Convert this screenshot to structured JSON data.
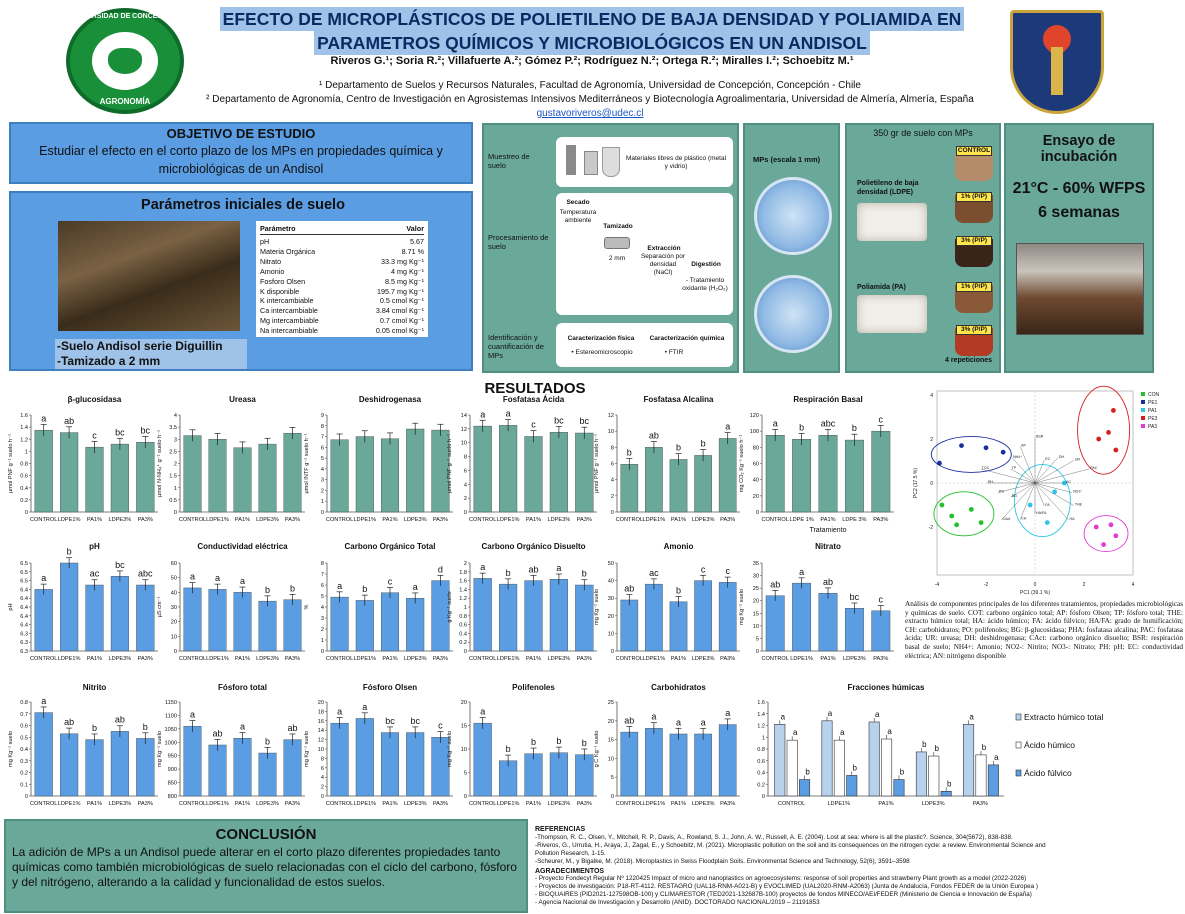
{
  "header": {
    "title_line1": "EFECTO DE MICROPLÁSTICOS DE POLIETILENO DE BAJA DENSIDAD  Y POLIAMIDA EN",
    "title_line2": "PARAMETROS QUÍMICOS Y MICROBIOLÓGICOS EN UN ANDISOL",
    "authors": "Riveros G.¹; Soria R.²; Villafuerte A.²; Gómez P.²; Rodríguez N.²; Ortega R.²; Miralles I.²; Schoebitz M.¹",
    "affiliation1": "¹ Departamento de Suelos y Recursos Naturales, Facultad de Agronomía, Universidad de Concepción, Concepción - Chile",
    "affiliation2": "² Departamento de Agronomía, Centro de Investigación en Agrosistemas Intensivos Mediterráneos y Biotecnología Agroalimentaria, Universidad de Almería, Almería, España",
    "email": "gustavoriveros@udec.cl",
    "logo_left_top": "UNIVERSIDAD DE CONCEPCIÓN",
    "logo_left_bottom": "AGRONOMÍA"
  },
  "objective": {
    "title": "OBJETIVO DE ESTUDIO",
    "text": "Estudiar el efecto en el corto plazo de los MPs en propiedades química y microbiológicas de un Andisol"
  },
  "params": {
    "title": "Parámetros iniciales de suelo",
    "col_param": "Parámetro",
    "col_value": "Valor",
    "rows": [
      {
        "p": "pH",
        "v": "5.67"
      },
      {
        "p": "Materia Orgánica",
        "v": "8.71 %"
      },
      {
        "p": "Nitrato",
        "v": "33.3  mg Kg⁻¹"
      },
      {
        "p": "Amonio",
        "v": "4  mg Kg⁻¹"
      },
      {
        "p": "Fosforo Olsen",
        "v": "8.5  mg Kg⁻¹"
      },
      {
        "p": "K disponible",
        "v": "195.7  mg Kg⁻¹"
      },
      {
        "p": "K intercambiable",
        "v": "0.5  cmol Kg⁻¹"
      },
      {
        "p": "Ca intercambiable",
        "v": "3.84  cmol Kg⁻¹"
      },
      {
        "p": "Mg intercambiable",
        "v": "0.7  cmol Kg⁻¹"
      },
      {
        "p": "Na intercambiable",
        "v": "0.05  cmol Kg⁻¹"
      }
    ],
    "note1": "-Suelo Andisol serie Diguillin",
    "note2": "-Tamizado a 2 mm"
  },
  "method": {
    "muestreo": "Muestreo de suelo",
    "mat_libres": "Materiales libres de plástico (metal y vidrio)",
    "procesamiento": "Procesamiento de suelo",
    "secado": "Secado",
    "temp": "Temperatura ambiente",
    "tamizado": "Tamizado",
    "mm": "2 mm",
    "extraccion": "Extracción",
    "separacion": "Separación por densidad (NaCl)",
    "digestion": "Digestión",
    "tratamiento": "- Tratamiento oxidante (H₂O₂)",
    "identificacion": "Identificación y cuantificación de MPs",
    "fisica": "Caracterización física",
    "quimica": "Caracterización química",
    "estereo": "•  Estereomicroscopio",
    "ftir": "•  FTIR"
  },
  "mps": {
    "label": "MPs (escala 1 mm)"
  },
  "mpsoil": {
    "title": "350 gr de suelo con MPs",
    "ldpe": "Polietileno de baja densidad (LDPE)",
    "pa": "Poliamida (PA)",
    "tags": [
      "CONTROL",
      "1% (P/P)",
      "3% (P/P)",
      "1% (P/P)",
      "3% (P/P)"
    ],
    "reps": "4 repeticiones"
  },
  "incubation": {
    "title": "Ensayo de incubación",
    "temp": "21°C - 60% WFPS",
    "time": "6 semanas"
  },
  "results_title": "RESULTADOS",
  "chart_data": [
    {
      "type": "bar",
      "title": "β-glucosidasa",
      "ylabel": "µmol PNF g⁻¹ suelo h⁻¹",
      "categories": [
        "CONTROL",
        "LDPE1%",
        "PA1%",
        "LDPE3%",
        "PA3%"
      ],
      "values": [
        1.35,
        1.31,
        1.07,
        1.12,
        1.15
      ],
      "letters": [
        "a",
        "ab",
        "c",
        "bc",
        "bc"
      ],
      "ylim": [
        0,
        1.6
      ],
      "ticks": [
        0,
        0.2,
        0.4,
        0.6,
        0.8,
        1,
        1.2,
        1.4,
        1.6
      ],
      "color": "#6aa89a"
    },
    {
      "type": "bar",
      "title": "Ureasa",
      "ylabel": "µmol N-NH₄⁺ g⁻¹ suelo h⁻¹",
      "categories": [
        "CONTROL",
        "LDPE1%",
        "PA1%",
        "LDPE3%",
        "PA3%"
      ],
      "values": [
        3.15,
        3.0,
        2.65,
        2.8,
        3.25
      ],
      "letters": [
        "",
        "",
        "",
        "",
        ""
      ],
      "ylim": [
        0,
        4
      ],
      "ticks": [
        0,
        0.5,
        1,
        1.5,
        2,
        2.5,
        3,
        3.5,
        4
      ],
      "color": "#6aa89a"
    },
    {
      "type": "bar",
      "title": "Deshidrogenasa",
      "ylabel": "µmol INTF g⁻¹ suelo h⁻¹",
      "categories": [
        "CONTROL",
        "LDPE1%",
        "PA1%",
        "LDPE3%",
        "PA3%"
      ],
      "values": [
        6.7,
        7.0,
        6.8,
        7.7,
        7.6
      ],
      "letters": [
        "",
        "",
        "",
        "",
        ""
      ],
      "ylim": [
        0,
        9
      ],
      "ticks": [
        0,
        1,
        2,
        3,
        4,
        5,
        6,
        7,
        8,
        9
      ],
      "color": "#6aa89a"
    },
    {
      "type": "bar",
      "title": "Fosfatasa Ácida",
      "ylabel": "µmol PNF g⁻¹ suelo h⁻¹",
      "categories": [
        "CONTROL",
        "LDPE1%",
        "PA1%",
        "LDPE3%",
        "PA3%"
      ],
      "values": [
        12.4,
        12.5,
        10.9,
        11.5,
        11.4
      ],
      "letters": [
        "a",
        "a",
        "c",
        "bc",
        "bc"
      ],
      "ylim": [
        0,
        14
      ],
      "ticks": [
        0,
        2,
        4,
        6,
        8,
        10,
        12,
        14
      ],
      "color": "#6aa89a"
    },
    {
      "type": "bar",
      "title": "Fosfatasa Alcalina",
      "ylabel": "µmol PNF g⁻¹ suelo h⁻¹",
      "categories": [
        "CONTROL",
        "LDPE1%",
        "PA1%",
        "LDPE3%",
        "PA3%"
      ],
      "values": [
        5.9,
        8.0,
        6.5,
        7.0,
        9.1
      ],
      "letters": [
        "b",
        "ab",
        "b",
        "b",
        "a"
      ],
      "ylim": [
        0,
        12
      ],
      "ticks": [
        0,
        2,
        4,
        6,
        8,
        10,
        12
      ],
      "color": "#6aa89a"
    },
    {
      "type": "bar",
      "title": "Respiración Basal",
      "ylabel": "mg CO₂ Kg⁻¹ suelo h⁻¹",
      "xlabel": "Tratamiento",
      "categories": [
        "CONTROL",
        "LDPE 1%",
        "PA1%",
        "LDPE 3%",
        "PA3%"
      ],
      "values": [
        95,
        90,
        95,
        89,
        100
      ],
      "letters": [
        "a",
        "b",
        "abc",
        "b",
        "c"
      ],
      "ylim": [
        0,
        120
      ],
      "ticks": [
        0,
        20,
        40,
        60,
        80,
        100,
        120
      ],
      "color": "#6aa89a"
    },
    {
      "type": "bar",
      "title": "pH",
      "ylabel": "pH",
      "categories": [
        "CONTROL",
        "LDPE1%",
        "PA1%",
        "LDPE3%",
        "PA3%"
      ],
      "values": [
        6.44,
        6.5,
        6.45,
        6.47,
        6.45
      ],
      "letters": [
        "a",
        "b",
        "ac",
        "bc",
        "abc"
      ],
      "ylim": [
        6.3,
        6.5
      ],
      "ticks": [
        6.3,
        6.32,
        6.34,
        6.36,
        6.38,
        6.4,
        6.42,
        6.44,
        6.46,
        6.48,
        6.5
      ],
      "tick_labels": [
        "6.3",
        "6.3",
        "6.3",
        "6.4",
        "6.4",
        "6.4",
        "6.4",
        "6.4",
        "6.5",
        "6.5",
        "6.5"
      ],
      "color": "#5a9de2"
    },
    {
      "type": "bar",
      "title": "Conductividad eléctrica",
      "ylabel": "µS cm⁻¹",
      "categories": [
        "CONTROL",
        "LDPE1%",
        "PA1%",
        "LDPE3%",
        "PA3%"
      ],
      "values": [
        43,
        42,
        40,
        34,
        35
      ],
      "letters": [
        "a",
        "a",
        "a",
        "b",
        "b"
      ],
      "ylim": [
        0,
        60
      ],
      "ticks": [
        0,
        10,
        20,
        30,
        40,
        50,
        60
      ],
      "color": "#5a9de2"
    },
    {
      "type": "bar",
      "title": "Carbono Orgánico Total",
      "ylabel": "%",
      "categories": [
        "CONTROL",
        "LDPE1%",
        "PA1%",
        "LDPE3%",
        "PA3%"
      ],
      "values": [
        4.9,
        4.6,
        5.3,
        4.8,
        6.4
      ],
      "letters": [
        "a",
        "b",
        "c",
        "a",
        "d"
      ],
      "ylim": [
        0,
        8
      ],
      "ticks": [
        0,
        1,
        2,
        3,
        4,
        5,
        6,
        7,
        8
      ],
      "color": "#5a9de2"
    },
    {
      "type": "bar",
      "title": "Carbono Orgánico Disuelto",
      "ylabel": "g Kg⁻¹ suelo",
      "categories": [
        "CONTROL",
        "LDPE1%",
        "PA1%",
        "LDPE3%",
        "PA3%"
      ],
      "values": [
        1.65,
        1.52,
        1.6,
        1.63,
        1.5
      ],
      "letters": [
        "a",
        "b",
        "ab",
        "a",
        "b"
      ],
      "ylim": [
        0,
        2
      ],
      "ticks": [
        0,
        0.2,
        0.4,
        0.6,
        0.8,
        1,
        1.2,
        1.4,
        1.6,
        1.8,
        2
      ],
      "color": "#5a9de2"
    },
    {
      "type": "bar",
      "title": "Amonio",
      "ylabel": "mg Kg⁻¹ suelo",
      "categories": [
        "CONTROL",
        "LDPE1%",
        "PA1%",
        "LDPE3%",
        "PA3%"
      ],
      "values": [
        29,
        38,
        28,
        40,
        39
      ],
      "letters": [
        "ab",
        "ac",
        "b",
        "c",
        "c"
      ],
      "ylim": [
        0,
        50
      ],
      "ticks": [
        0,
        10,
        20,
        30,
        40,
        50
      ],
      "color": "#5a9de2"
    },
    {
      "type": "bar",
      "title": "Nitrato",
      "ylabel": "mg Kg⁻¹ suelo",
      "categories": [
        "CONTROL",
        "LDPE1%",
        "PA1%",
        "LDPE3%",
        "PA3%"
      ],
      "values": [
        22,
        27,
        23,
        17,
        16
      ],
      "letters": [
        "ab",
        "a",
        "ab",
        "bc",
        "c"
      ],
      "ylim": [
        0,
        35
      ],
      "ticks": [
        0,
        5,
        10,
        15,
        20,
        25,
        30,
        35
      ],
      "color": "#5a9de2"
    },
    {
      "type": "bar",
      "title": "Nitrito",
      "ylabel": "mg Kg⁻¹ suelo",
      "categories": [
        "CONTROL",
        "LDPE1%",
        "PA1%",
        "LDPE3%",
        "PA3%"
      ],
      "values": [
        0.71,
        0.53,
        0.48,
        0.55,
        0.49
      ],
      "letters": [
        "a",
        "ab",
        "b",
        "ab",
        "b"
      ],
      "ylim": [
        0,
        0.8
      ],
      "ticks": [
        0,
        0.1,
        0.2,
        0.3,
        0.4,
        0.5,
        0.6,
        0.7,
        0.8
      ],
      "color": "#5a9de2"
    },
    {
      "type": "bar",
      "title": "Fósforo total",
      "ylabel": "mg Kg⁻¹ suelo",
      "categories": [
        "CONTROL",
        "LDPE1%",
        "PA1%",
        "LDPE3%",
        "PA3%"
      ],
      "values": [
        1060,
        990,
        1015,
        960,
        1010
      ],
      "letters": [
        "a",
        "ab",
        "a",
        "b",
        "ab"
      ],
      "ylim": [
        800,
        1150
      ],
      "ticks": [
        800,
        850,
        900,
        950,
        1000,
        1050,
        1100,
        1150
      ],
      "color": "#5a9de2"
    },
    {
      "type": "bar",
      "title": "Fósforo Olsen",
      "ylabel": "mg Kg⁻¹ suelo",
      "categories": [
        "CONTROL",
        "LDPE1%",
        "PA1%",
        "LDPE3%",
        "PA3%"
      ],
      "values": [
        15.5,
        16.5,
        13.5,
        13.5,
        12.5
      ],
      "letters": [
        "a",
        "a",
        "bc",
        "bc",
        "c"
      ],
      "ylim": [
        0,
        20
      ],
      "ticks": [
        0,
        2,
        4,
        6,
        8,
        10,
        12,
        14,
        16,
        18,
        20
      ],
      "color": "#5a9de2"
    },
    {
      "type": "bar",
      "title": "Polifenoles",
      "ylabel": "mg Kg⁻¹ suelo",
      "categories": [
        "CONTROL",
        "LDPE1%",
        "PA1%",
        "LDPE3%",
        "PA3%"
      ],
      "values": [
        15.5,
        7.5,
        9,
        9.2,
        8.8
      ],
      "letters": [
        "a",
        "b",
        "b",
        "b",
        "b"
      ],
      "ylim": [
        0,
        20
      ],
      "ticks": [
        0,
        5,
        10,
        15,
        20
      ],
      "color": "#5a9de2"
    },
    {
      "type": "bar",
      "title": "Carbohidratos",
      "ylabel": "g C Kg⁻¹ suelo",
      "categories": [
        "CONTROL",
        "LDPE1%",
        "PA1%",
        "LDPE3%",
        "PA3%"
      ],
      "values": [
        17,
        18,
        16.5,
        16.5,
        19
      ],
      "letters": [
        "ab",
        "a",
        "a",
        "a",
        "a"
      ],
      "ylim": [
        0,
        25
      ],
      "ticks": [
        0,
        5,
        10,
        15,
        20,
        25
      ],
      "color": "#5a9de2"
    },
    {
      "type": "bar",
      "title": "Fracciones húmicas",
      "categories": [
        "CONTROL",
        "LDPE1%",
        "PA1%",
        "LDPE3%",
        "PA3%"
      ],
      "ylim": [
        0,
        1.6
      ],
      "ticks": [
        0,
        0.2,
        0.4,
        0.6,
        0.8,
        1,
        1.2,
        1.4,
        1.6
      ],
      "series": [
        {
          "name": "Extracto húmico total",
          "values": [
            1.22,
            1.28,
            1.26,
            0.75,
            1.22
          ],
          "letters": [
            "a",
            "a",
            "a",
            "b",
            "a"
          ],
          "color": "#b8d2ee"
        },
        {
          "name": "Ácido húmico",
          "values": [
            0.95,
            0.95,
            0.97,
            0.68,
            0.7
          ],
          "letters": [
            "a",
            "a",
            "a",
            "b",
            "b"
          ],
          "color": "#ffffff"
        },
        {
          "name": "Ácido fúlvico",
          "values": [
            0.28,
            0.35,
            0.28,
            0.08,
            0.53
          ],
          "letters": [
            "b",
            "b",
            "b",
            "b",
            "a"
          ],
          "color": "#5a9de2"
        }
      ]
    }
  ],
  "pca": {
    "xlabel": "PC1 (39.1 %)",
    "ylabel": "PC2 (17.5 %)",
    "legend": [
      "CON",
      "PE1",
      "PA1",
      "PE3",
      "PA3"
    ],
    "legend_colors": [
      "#22c02a",
      "#1a2f9e",
      "#2bc7e6",
      "#d62020",
      "#e43ad6"
    ],
    "xticks": [
      "-4",
      "-2",
      "0",
      "2",
      "4"
    ],
    "yticks": [
      "4",
      "2",
      "0",
      "-2"
    ],
    "vars": [
      "AC",
      "NO3⁻",
      "THE",
      "HA",
      "FA",
      "HA/FA",
      "CH",
      "CAct",
      "BG",
      "PO",
      "PH",
      "TOC",
      "TP",
      "NH4⁺",
      "AP",
      "BSR",
      "EC",
      "DH",
      "UR",
      "PAC"
    ],
    "caption": "Análisis de componentes principales de los diferentes tratamientos, propiedades microbiológicas y químicas de suelo. COT: carbono orgánico total; AP: fósforo Olsen; TP: fósforo total; THE: extracto húmico total; HA: ácido húmico; FA: ácido fúlvico; HA/FA: grado de humificación; CH: carbohidratos; PO: polifenoles; BG: β-glucosidasa; PHA: fosfatasa alcalina; PAC: fosfatasa ácida; UR: ureasa; DH: deshidrogenasa; CAct: carbono orgánico disuelto; BSR: respiración basal de suelo; NH4+: Amonio; NO2-: Nitrito; NO3-: Nitrato; PH: pH; EC: conductividad eléctrica; AN: nitrógeno disponible"
  },
  "conclusion": {
    "title": "CONCLUSIÓN",
    "text": "La adición de MPs a un Andisol puede alterar en el corto plazo diferentes propiedades tanto químicas como también microbiológicas de suelo relacionadas con el ciclo del carbono, fósforo y del nitrógeno, alterando a la calidad y funcionalidad de estos suelos."
  },
  "references": {
    "title": "REFERENCIAS",
    "items": [
      "-Thompson, R. C., Olsen, Y., Mitchell, R. P., Davis, A., Rowland, S. J., John, A. W., Russell, A. E. (2004). Lost at sea: where is all the plastic?. Science, 304(5672), 838-838.",
      "-Riveros, G., Urrutia, H., Araya, J., Zagal, E., y Schoebitz, M. (2021). Microplastic pollution on the soil and its consequences on the nitrogen cycle: a review. Environmental Science and Pollution Research, 1-15.",
      "-Scheurer, M., y Bigalke, M. (2018). Microplastics in Swiss Floodplain Soils. Environmental Science and Technology, 52(6), 3591–3598"
    ],
    "ack_title": "AGRADECIMIENTOS",
    "acks": [
      "- Proyecto Fondecyt Regular Nº 1220425 Impact of micro and nanoplastics on agroecosystems: response of soil properties and strawberry Plant growth as a model (2022-2026)",
      "- Proyectos de investigación: P18-RT-4112. RESTAGRO (UAL18-RNM-A021-B) y EVOCLIMED (UAL2020-RNM-A2063) (Junta de Andalucía, Fondos FEDER de la Unión Europea )",
      "- BIOQUAIRES (PID2021-127598OB-100) y CLIMARESTOR (TED2021-132687B-100) proyectos de fondos MINECO/AEI/FEDER (Ministerio de Ciencia e Innovación de España)",
      "- Agencia Nacional de Investigación y Desarrollo (ANID). DOCTORADO NACIONAL/2019 – 21191853"
    ]
  }
}
